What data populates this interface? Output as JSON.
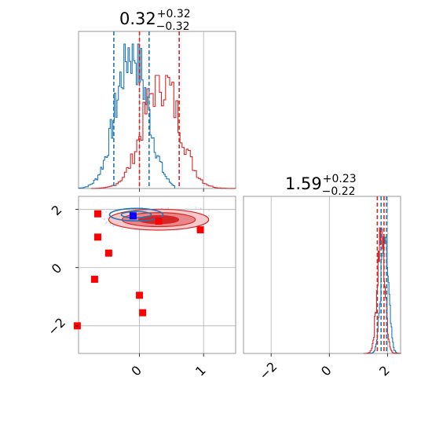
{
  "chart_data": {
    "type": "corner",
    "parameters": [
      {
        "title_value": "0.32",
        "title_plus": "+0.32",
        "title_minus": "−0.32",
        "range": [
          -0.95,
          1.5
        ],
        "ticks": [
          0,
          1
        ],
        "tick_labels": [
          "0",
          "1"
        ]
      },
      {
        "title_value": "1.59",
        "title_plus": "+0.23",
        "title_minus": "−0.22",
        "range": [
          -2.95,
          2.45
        ],
        "ticks": [
          -2,
          0,
          2
        ],
        "tick_labels": [
          "−2",
          "0",
          "2"
        ]
      }
    ],
    "grid": true,
    "colors": {
      "red": "#d62728",
      "blue": "#1f77b4",
      "marker_red": "#ff0000",
      "marker_blue": "#0000ff"
    },
    "series": [
      {
        "color": "red",
        "param0_quantile_lines": [
          0.0,
          0.62
        ],
        "param1_quantile_lines": [
          1.65,
          1.88
        ],
        "ellipse_center": [
          0.3,
          1.65
        ],
        "ellipse_halfwidths": [
          [
            0.12,
            0.14
          ],
          [
            0.22,
            0.24
          ],
          [
            0.3,
            0.36
          ]
        ]
      },
      {
        "color": "blue",
        "param0_quantile_lines": [
          -0.4,
          0.15
        ],
        "param1_quantile_lines": [
          1.78,
          1.97
        ],
        "ellipse_center": [
          -0.05,
          1.82
        ],
        "ellipse_halfwidths": [
          [
            0.18,
            0.12
          ],
          [
            0.32,
            0.24
          ]
        ]
      }
    ],
    "red_markers": [
      [
        -0.65,
        1.85
      ],
      [
        -0.65,
        1.05
      ],
      [
        -0.48,
        0.5
      ],
      [
        -0.7,
        -0.4
      ],
      [
        0.0,
        -0.95
      ],
      [
        0.05,
        -1.55
      ],
      [
        -0.97,
        -2.0
      ],
      [
        0.3,
        1.6
      ],
      [
        0.95,
        1.3
      ]
    ],
    "blue_markers": [
      [
        -0.1,
        1.78
      ]
    ]
  }
}
